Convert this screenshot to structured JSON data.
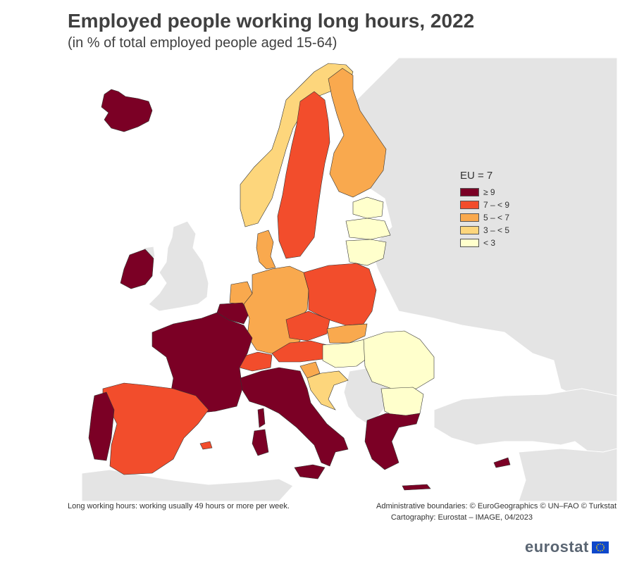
{
  "title": "Employed people working long hours, 2022",
  "subtitle": "(in % of total employed people aged 15-64)",
  "legend": {
    "header": "EU = 7",
    "classes": [
      {
        "label": "≥ 9",
        "color": "#7b0025"
      },
      {
        "label": "7 – < 9",
        "color": "#f24d2c"
      },
      {
        "label": "5 – < 7",
        "color": "#f9a94e"
      },
      {
        "label": "3 – < 5",
        "color": "#fdd67c"
      },
      {
        "label": "< 3",
        "color": "#ffffcc"
      }
    ]
  },
  "map_colors": {
    "sea": "#ffffff",
    "non_eu": "#e4e4e4",
    "no_data": "#ffffff"
  },
  "countries": [
    {
      "name": "Iceland",
      "class": "≥ 9"
    },
    {
      "name": "Ireland",
      "class": "≥ 9"
    },
    {
      "name": "France",
      "class": "≥ 9"
    },
    {
      "name": "Portugal",
      "class": "≥ 9"
    },
    {
      "name": "Italy",
      "class": "≥ 9"
    },
    {
      "name": "Greece",
      "class": "≥ 9"
    },
    {
      "name": "Cyprus",
      "class": "≥ 9"
    },
    {
      "name": "Belgium",
      "class": "≥ 9"
    },
    {
      "name": "Luxembourg",
      "class": "≥ 9"
    },
    {
      "name": "Spain",
      "class": "7 – < 9"
    },
    {
      "name": "Sweden",
      "class": "7 – < 9"
    },
    {
      "name": "Poland",
      "class": "7 – < 9"
    },
    {
      "name": "Czechia",
      "class": "7 – < 9"
    },
    {
      "name": "Austria",
      "class": "7 – < 9"
    },
    {
      "name": "Switzerland",
      "class": "7 – < 9"
    },
    {
      "name": "Finland",
      "class": "5 – < 7"
    },
    {
      "name": "Germany",
      "class": "5 – < 7"
    },
    {
      "name": "Denmark",
      "class": "5 – < 7"
    },
    {
      "name": "Slovakia",
      "class": "5 – < 7"
    },
    {
      "name": "Slovenia",
      "class": "5 – < 7"
    },
    {
      "name": "Norway",
      "class": "3 – < 5"
    },
    {
      "name": "Netherlands",
      "class": "3 – < 5"
    },
    {
      "name": "Croatia",
      "class": "3 – < 5"
    },
    {
      "name": "Estonia",
      "class": "< 3"
    },
    {
      "name": "Latvia",
      "class": "< 3"
    },
    {
      "name": "Lithuania",
      "class": "< 3"
    },
    {
      "name": "Hungary",
      "class": "< 3"
    },
    {
      "name": "Romania",
      "class": "< 3"
    },
    {
      "name": "Bulgaria",
      "class": "< 3"
    }
  ],
  "footnote_left": "Long working hours: working usually 49 hours or more per week.",
  "footnote_right_1": "Administrative boundaries: © EuroGeographics © UN–FAO © Turkstat",
  "footnote_right_2": "Cartography: Eurostat – IMAGE, 04/2023",
  "logo_text": "eurostat"
}
